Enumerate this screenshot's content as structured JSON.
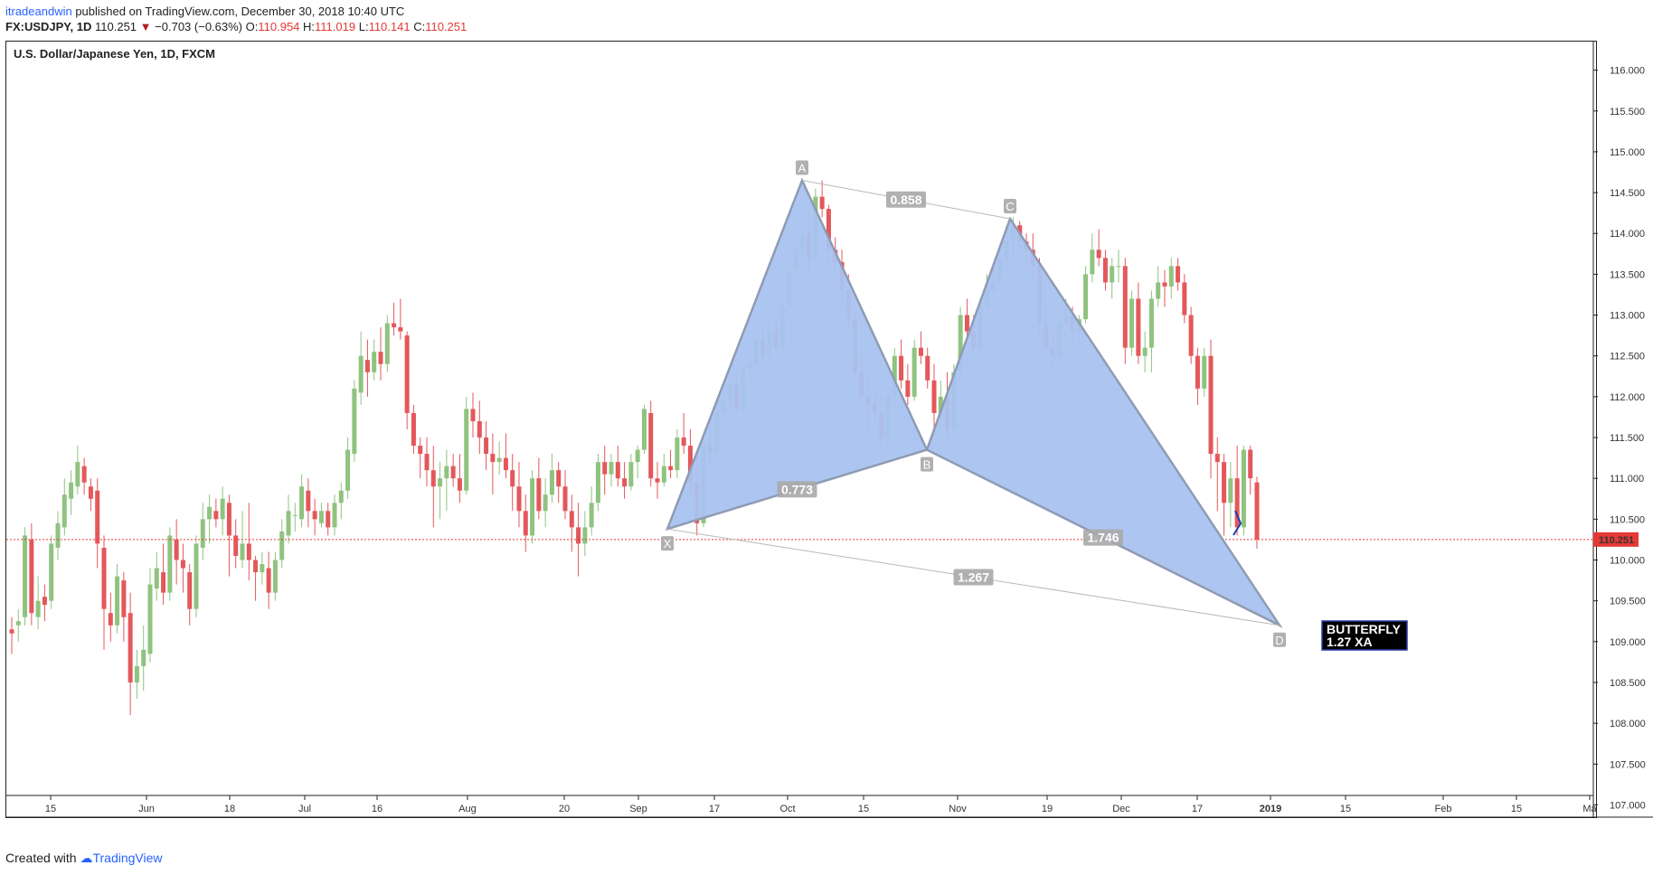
{
  "header": {
    "author": "itradeandwin",
    "published_text": " published on TradingView.com, December 30, 2018 10:40 UTC",
    "symbol": "FX:USDJPY, 1D",
    "last": "110.251",
    "change": "−0.703 (−0.63%)",
    "open_label": "O:",
    "open": "110.954",
    "high_label": "H:",
    "high": "111.019",
    "low_label": "L:",
    "low": "110.141",
    "close_label": "C:",
    "close": "110.251"
  },
  "footer": {
    "created_with": "Created with",
    "brand": "TradingView"
  },
  "colors": {
    "up": "#8fc37f",
    "down": "#e4575b",
    "pattern_fill": "#a9c3f0",
    "pattern_stroke": "#8f9bb3"
  },
  "chart_data": {
    "type": "candlestick",
    "title": "U.S. Dollar/Japanese Yen, 1D, FXCM",
    "y_ticks": [
      "116.000",
      "115.500",
      "115.000",
      "114.500",
      "114.000",
      "113.500",
      "113.000",
      "112.500",
      "112.000",
      "111.500",
      "111.000",
      "110.500",
      "110.000",
      "109.500",
      "109.000",
      "108.500",
      "108.000",
      "107.500",
      "107.000"
    ],
    "ylim": [
      106.85,
      116.35
    ],
    "x_ticks": [
      "15",
      "Jun",
      "18",
      "Jul",
      "16",
      "Aug",
      "20",
      "Sep",
      "17",
      "Oct",
      "15",
      "Nov",
      "19",
      "Dec",
      "17",
      "2019",
      "15",
      "Feb",
      "15",
      "Ma"
    ],
    "current_price": "110.251",
    "candles": [
      [
        109.15,
        109.3,
        108.85,
        109.1
      ],
      [
        109.2,
        109.4,
        109.0,
        109.25
      ],
      [
        109.3,
        110.4,
        109.2,
        110.3
      ],
      [
        110.25,
        110.45,
        109.2,
        109.35
      ],
      [
        109.3,
        109.8,
        109.15,
        109.5
      ],
      [
        109.55,
        109.7,
        109.25,
        109.45
      ],
      [
        109.5,
        110.3,
        109.4,
        110.2
      ],
      [
        110.15,
        110.6,
        110.0,
        110.45
      ],
      [
        110.4,
        111.0,
        110.3,
        110.8
      ],
      [
        110.75,
        111.1,
        110.55,
        110.95
      ],
      [
        110.9,
        111.4,
        110.8,
        111.2
      ],
      [
        111.15,
        111.25,
        110.8,
        110.95
      ],
      [
        110.9,
        111.0,
        110.6,
        110.75
      ],
      [
        110.85,
        111.0,
        109.9,
        110.2
      ],
      [
        110.15,
        110.3,
        108.9,
        109.4
      ],
      [
        109.35,
        109.6,
        109.0,
        109.2
      ],
      [
        109.2,
        109.95,
        109.1,
        109.8
      ],
      [
        109.75,
        109.85,
        109.0,
        109.3
      ],
      [
        109.35,
        109.6,
        108.1,
        108.5
      ],
      [
        108.5,
        108.9,
        108.3,
        108.7
      ],
      [
        108.7,
        109.2,
        108.4,
        108.9
      ],
      [
        108.85,
        109.9,
        108.75,
        109.7
      ],
      [
        109.65,
        110.1,
        109.5,
        109.9
      ],
      [
        109.85,
        110.2,
        109.45,
        109.6
      ],
      [
        109.6,
        110.4,
        109.5,
        110.3
      ],
      [
        110.25,
        110.5,
        109.7,
        110.0
      ],
      [
        110.0,
        110.2,
        109.6,
        109.9
      ],
      [
        109.85,
        109.95,
        109.2,
        109.4
      ],
      [
        109.4,
        110.3,
        109.3,
        110.2
      ],
      [
        110.15,
        110.7,
        110.0,
        110.5
      ],
      [
        110.5,
        110.8,
        110.2,
        110.65
      ],
      [
        110.6,
        110.75,
        110.4,
        110.5
      ],
      [
        110.5,
        110.9,
        110.3,
        110.75
      ],
      [
        110.7,
        110.8,
        109.8,
        110.3
      ],
      [
        110.3,
        110.5,
        109.9,
        110.05
      ],
      [
        110.0,
        110.6,
        109.9,
        110.2
      ],
      [
        110.2,
        110.7,
        109.75,
        110.0
      ],
      [
        110.0,
        110.05,
        109.5,
        109.85
      ],
      [
        109.85,
        110.1,
        109.7,
        109.95
      ],
      [
        109.9,
        110.1,
        109.4,
        109.6
      ],
      [
        109.6,
        110.1,
        109.5,
        110.0
      ],
      [
        110.0,
        110.5,
        109.9,
        110.35
      ],
      [
        110.3,
        110.8,
        110.2,
        110.6
      ],
      [
        110.55,
        110.7,
        110.35,
        110.55
      ],
      [
        110.5,
        111.05,
        110.4,
        110.9
      ],
      [
        110.85,
        111.0,
        110.4,
        110.6
      ],
      [
        110.6,
        110.75,
        110.3,
        110.5
      ],
      [
        110.45,
        110.7,
        110.4,
        110.6
      ],
      [
        110.6,
        110.7,
        110.3,
        110.4
      ],
      [
        110.4,
        110.8,
        110.3,
        110.7
      ],
      [
        110.7,
        110.95,
        110.5,
        110.85
      ],
      [
        110.85,
        111.5,
        110.75,
        111.35
      ],
      [
        111.3,
        112.2,
        111.2,
        112.1
      ],
      [
        112.05,
        112.8,
        111.9,
        112.5
      ],
      [
        112.45,
        112.7,
        112.0,
        112.3
      ],
      [
        112.3,
        112.7,
        112.2,
        112.55
      ],
      [
        112.55,
        112.85,
        112.2,
        112.4
      ],
      [
        112.4,
        113.0,
        112.3,
        112.9
      ],
      [
        112.9,
        113.15,
        112.75,
        112.85
      ],
      [
        112.85,
        113.2,
        112.7,
        112.8
      ],
      [
        112.75,
        112.8,
        111.6,
        111.8
      ],
      [
        111.8,
        111.9,
        111.3,
        111.4
      ],
      [
        111.4,
        111.5,
        111.0,
        111.3
      ],
      [
        111.3,
        111.5,
        110.9,
        111.1
      ],
      [
        111.1,
        111.4,
        110.4,
        110.9
      ],
      [
        110.9,
        111.2,
        110.5,
        111.0
      ],
      [
        111.0,
        111.35,
        110.6,
        111.15
      ],
      [
        111.15,
        111.3,
        110.9,
        111.0
      ],
      [
        111.0,
        111.3,
        110.7,
        110.85
      ],
      [
        110.85,
        112.0,
        110.8,
        111.85
      ],
      [
        111.85,
        112.05,
        111.5,
        111.7
      ],
      [
        111.7,
        111.95,
        111.3,
        111.5
      ],
      [
        111.5,
        111.7,
        111.1,
        111.3
      ],
      [
        111.3,
        111.55,
        110.8,
        111.2
      ],
      [
        111.2,
        111.45,
        111.05,
        111.25
      ],
      [
        111.25,
        111.55,
        111.0,
        111.1
      ],
      [
        111.1,
        111.3,
        110.6,
        110.9
      ],
      [
        110.9,
        111.2,
        110.4,
        110.6
      ],
      [
        110.6,
        110.8,
        110.1,
        110.3
      ],
      [
        110.3,
        111.1,
        110.2,
        111.0
      ],
      [
        111.0,
        111.25,
        110.5,
        110.6
      ],
      [
        110.6,
        111.0,
        110.4,
        110.8
      ],
      [
        110.8,
        111.3,
        110.7,
        111.1
      ],
      [
        111.1,
        111.2,
        110.7,
        110.9
      ],
      [
        110.9,
        111.1,
        110.5,
        110.6
      ],
      [
        110.6,
        110.8,
        110.1,
        110.4
      ],
      [
        110.4,
        110.7,
        109.8,
        110.2
      ],
      [
        110.2,
        110.6,
        110.05,
        110.4
      ],
      [
        110.4,
        110.9,
        110.3,
        110.7
      ],
      [
        110.7,
        111.3,
        110.6,
        111.2
      ],
      [
        111.2,
        111.4,
        110.8,
        111.05
      ],
      [
        111.05,
        111.3,
        110.9,
        111.2
      ],
      [
        111.2,
        111.4,
        110.9,
        111.0
      ],
      [
        111.0,
        111.2,
        110.75,
        110.9
      ],
      [
        110.9,
        111.3,
        110.85,
        111.2
      ],
      [
        111.2,
        111.4,
        111.0,
        111.35
      ],
      [
        111.35,
        111.9,
        111.3,
        111.85
      ],
      [
        111.8,
        111.95,
        110.9,
        111.0
      ],
      [
        111.0,
        111.2,
        110.75,
        110.95
      ],
      [
        110.95,
        111.3,
        110.9,
        111.15
      ],
      [
        111.15,
        111.35,
        111.0,
        111.1
      ],
      [
        111.1,
        111.6,
        111.0,
        111.5
      ],
      [
        111.5,
        111.8,
        111.3,
        111.4
      ],
      [
        111.4,
        111.6,
        110.8,
        110.95
      ],
      [
        110.95,
        111.3,
        110.3,
        110.45
      ],
      [
        110.45,
        111.5,
        110.4,
        111.4
      ],
      [
        111.4,
        111.7,
        111.2,
        111.3
      ],
      [
        111.3,
        111.9,
        111.2,
        111.8
      ],
      [
        111.8,
        112.1,
        111.7,
        111.95
      ],
      [
        111.95,
        112.3,
        111.8,
        112.15
      ],
      [
        112.15,
        112.3,
        111.8,
        111.85
      ],
      [
        111.85,
        112.45,
        111.75,
        112.35
      ],
      [
        112.35,
        112.5,
        112.2,
        112.4
      ],
      [
        112.4,
        112.8,
        112.3,
        112.7
      ],
      [
        112.7,
        112.9,
        112.4,
        112.5
      ],
      [
        112.5,
        112.9,
        112.4,
        112.8
      ],
      [
        112.8,
        113.0,
        112.55,
        112.6
      ],
      [
        112.6,
        113.2,
        112.55,
        113.1
      ],
      [
        113.1,
        113.6,
        113.0,
        113.55
      ],
      [
        113.55,
        113.9,
        113.45,
        113.8
      ],
      [
        113.8,
        114.2,
        113.6,
        114.0
      ],
      [
        114.0,
        114.3,
        113.5,
        113.7
      ],
      [
        113.7,
        114.55,
        113.6,
        114.45
      ],
      [
        114.45,
        114.65,
        114.2,
        114.3
      ],
      [
        114.3,
        114.35,
        113.6,
        113.8
      ],
      [
        113.8,
        113.95,
        113.5,
        113.65
      ],
      [
        113.65,
        113.8,
        113.2,
        113.3
      ],
      [
        113.3,
        113.5,
        112.8,
        112.95
      ],
      [
        112.95,
        113.1,
        112.2,
        112.3
      ],
      [
        112.3,
        112.5,
        111.8,
        112.0
      ],
      [
        112.0,
        112.3,
        111.6,
        111.9
      ],
      [
        111.9,
        112.1,
        111.7,
        111.8
      ],
      [
        111.8,
        112.0,
        111.4,
        111.5
      ],
      [
        111.5,
        112.1,
        111.4,
        112.0
      ],
      [
        112.0,
        112.6,
        111.9,
        112.5
      ],
      [
        112.5,
        112.7,
        112.1,
        112.2
      ],
      [
        112.2,
        112.4,
        111.9,
        112.0
      ],
      [
        112.0,
        112.7,
        111.95,
        112.6
      ],
      [
        112.6,
        112.8,
        112.4,
        112.5
      ],
      [
        112.5,
        112.6,
        112.1,
        112.2
      ],
      [
        112.2,
        112.4,
        111.5,
        111.8
      ],
      [
        111.8,
        112.2,
        111.7,
        112.0
      ],
      [
        112.0,
        112.3,
        111.4,
        111.6
      ],
      [
        111.6,
        112.4,
        111.5,
        112.3
      ],
      [
        112.3,
        113.1,
        112.2,
        113.0
      ],
      [
        113.0,
        113.2,
        112.7,
        112.8
      ],
      [
        112.8,
        113.0,
        112.5,
        112.6
      ],
      [
        112.6,
        113.2,
        112.5,
        113.1
      ],
      [
        113.1,
        113.5,
        112.9,
        113.3
      ],
      [
        113.3,
        113.6,
        113.1,
        113.4
      ],
      [
        113.4,
        113.8,
        113.3,
        113.7
      ],
      [
        113.7,
        114.1,
        113.6,
        113.9
      ],
      [
        113.9,
        114.2,
        113.7,
        114.1
      ],
      [
        114.1,
        114.15,
        113.8,
        113.9
      ],
      [
        113.9,
        114.0,
        113.6,
        113.8
      ],
      [
        113.8,
        114.0,
        113.4,
        113.6
      ],
      [
        113.6,
        113.7,
        112.7,
        112.9
      ],
      [
        112.9,
        113.1,
        112.5,
        112.6
      ],
      [
        112.6,
        112.8,
        112.3,
        112.5
      ],
      [
        112.5,
        113.0,
        112.4,
        112.9
      ],
      [
        112.9,
        113.2,
        112.7,
        113.0
      ],
      [
        113.0,
        113.1,
        112.7,
        112.8
      ],
      [
        112.8,
        113.0,
        112.6,
        112.95
      ],
      [
        112.95,
        113.6,
        112.9,
        113.5
      ],
      [
        113.5,
        114.0,
        113.4,
        113.8
      ],
      [
        113.8,
        114.05,
        113.6,
        113.7
      ],
      [
        113.7,
        113.8,
        113.3,
        113.4
      ],
      [
        113.4,
        113.7,
        113.2,
        113.6
      ],
      [
        113.6,
        113.8,
        113.4,
        113.6
      ],
      [
        113.6,
        113.7,
        112.4,
        112.6
      ],
      [
        112.6,
        113.3,
        112.5,
        113.2
      ],
      [
        113.2,
        113.4,
        112.4,
        112.5
      ],
      [
        112.5,
        112.8,
        112.3,
        112.6
      ],
      [
        112.6,
        113.3,
        112.3,
        113.2
      ],
      [
        113.2,
        113.6,
        113.1,
        113.4
      ],
      [
        113.4,
        113.55,
        113.1,
        113.35
      ],
      [
        113.35,
        113.7,
        113.2,
        113.6
      ],
      [
        113.6,
        113.7,
        113.3,
        113.4
      ],
      [
        113.4,
        113.5,
        112.9,
        113.0
      ],
      [
        113.0,
        113.1,
        112.4,
        112.5
      ],
      [
        112.5,
        112.6,
        111.9,
        112.1
      ],
      [
        112.1,
        112.6,
        112.0,
        112.5
      ],
      [
        112.5,
        112.7,
        111.0,
        111.3
      ],
      [
        111.3,
        111.5,
        110.6,
        111.2
      ],
      [
        111.2,
        111.3,
        110.3,
        110.7
      ],
      [
        110.7,
        111.2,
        110.4,
        111.0
      ],
      [
        111.0,
        111.4,
        110.3,
        110.4
      ],
      [
        110.4,
        111.4,
        110.3,
        111.35
      ],
      [
        111.35,
        111.4,
        110.8,
        111.0
      ],
      [
        110.95,
        111.02,
        110.14,
        110.25
      ]
    ],
    "pattern": {
      "name": "BUTTERFLY",
      "subtitle": "1.27 XA",
      "points": [
        {
          "label": "X",
          "price": 110.38
        },
        {
          "label": "A",
          "price": 114.65
        },
        {
          "label": "B",
          "price": 111.35
        },
        {
          "label": "C",
          "price": 114.18
        },
        {
          "label": "D",
          "price": 109.2
        }
      ],
      "ratios": [
        {
          "label": "0.858"
        },
        {
          "label": "0.773"
        },
        {
          "label": "1.746"
        },
        {
          "label": "1.267"
        }
      ]
    }
  }
}
